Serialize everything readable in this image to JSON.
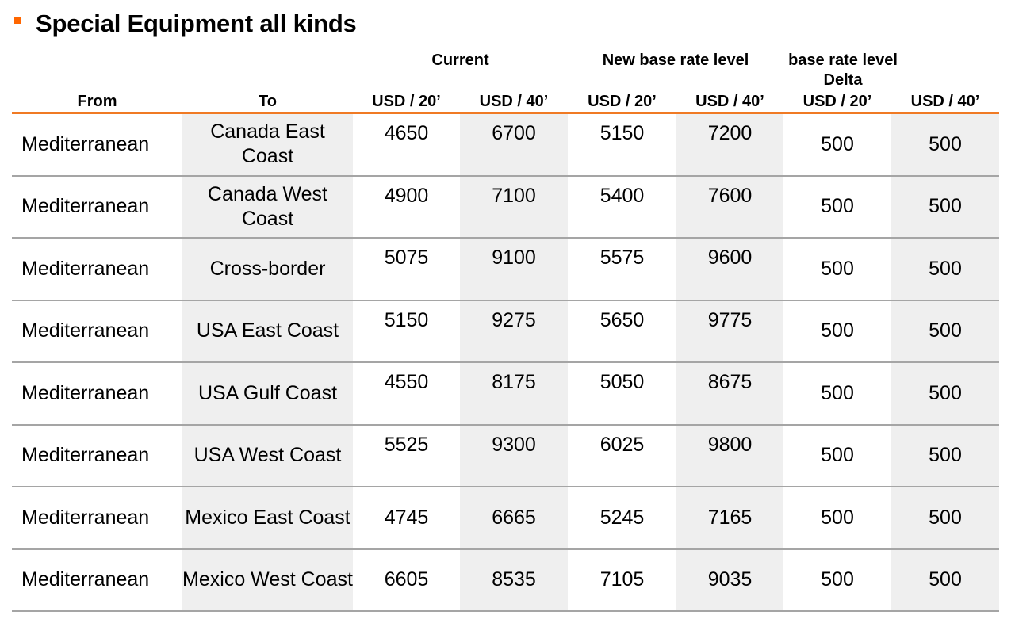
{
  "title": "Special Equipment all kinds",
  "header": {
    "groups": {
      "current": "Current",
      "new_base": "New base rate level",
      "delta": "base rate level Delta"
    },
    "columns": {
      "from": "From",
      "to": "To",
      "cur20": "USD / 20’",
      "cur40": "USD / 40’",
      "new20": "USD / 20’",
      "new40": "USD / 40’",
      "del20": "USD / 20’",
      "del40": "USD / 40’"
    }
  },
  "rows": [
    {
      "from": "Mediterranean",
      "to": "Canada East Coast",
      "cur20": "4650",
      "cur40": "6700",
      "new20": "5150",
      "new40": "7200",
      "del20": "500",
      "del40": "500"
    },
    {
      "from": "Mediterranean",
      "to": "Canada West Coast",
      "cur20": "4900",
      "cur40": "7100",
      "new20": "5400",
      "new40": "7600",
      "del20": "500",
      "del40": "500"
    },
    {
      "from": "Mediterranean",
      "to": "Cross-border",
      "cur20": "5075",
      "cur40": "9100",
      "new20": "5575",
      "new40": "9600",
      "del20": "500",
      "del40": "500"
    },
    {
      "from": "Mediterranean",
      "to": "USA East Coast",
      "cur20": "5150",
      "cur40": "9275",
      "new20": "5650",
      "new40": "9775",
      "del20": "500",
      "del40": "500"
    },
    {
      "from": "Mediterranean",
      "to": "USA Gulf Coast",
      "cur20": "4550",
      "cur40": "8175",
      "new20": "5050",
      "new40": "8675",
      "del20": "500",
      "del40": "500"
    },
    {
      "from": "Mediterranean",
      "to": "USA West Coast",
      "cur20": "5525",
      "cur40": "9300",
      "new20": "6025",
      "new40": "9800",
      "del20": "500",
      "del40": "500"
    },
    {
      "from": "Mediterranean",
      "to": "Mexico East Coast",
      "cur20": "4745",
      "cur40": "6665",
      "new20": "5245",
      "new40": "7165",
      "del20": "500",
      "del40": "500"
    },
    {
      "from": "Mediterranean",
      "to": "Mexico West Coast",
      "cur20": "6605",
      "cur40": "8535",
      "new20": "7105",
      "new40": "9035",
      "del20": "500",
      "del40": "500"
    }
  ],
  "colors": {
    "accent": "#f07a24",
    "row_rule": "#a5a5a5",
    "shade": "#efefef"
  }
}
